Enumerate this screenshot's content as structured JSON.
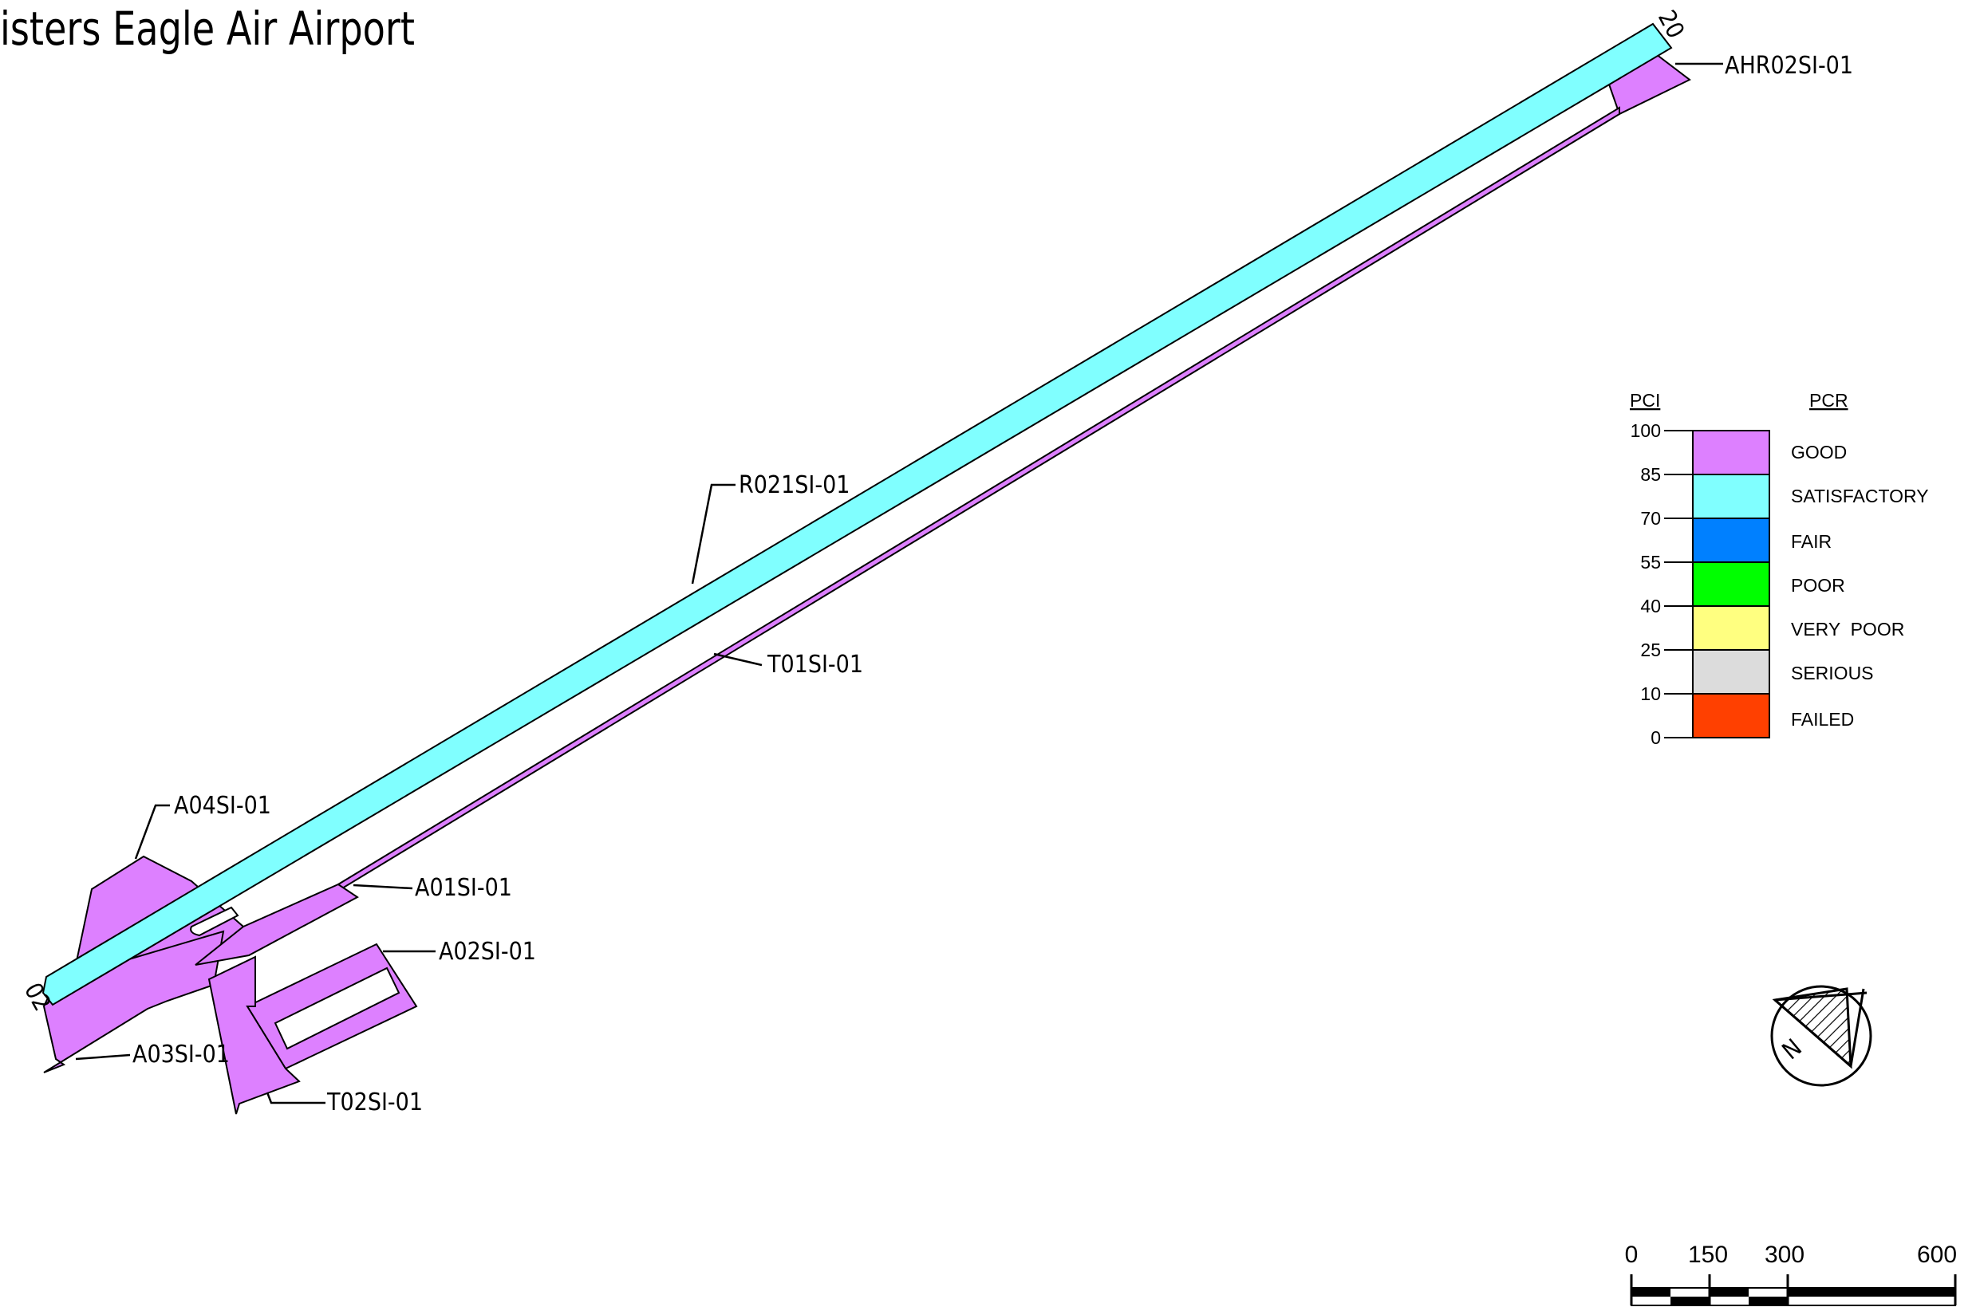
{
  "title": "isters Eagle Air Airport",
  "colors": {
    "good": "#dd80ff",
    "satisfactory": "#80ffff",
    "fair": "#0080ff",
    "poor": "#00ff00",
    "very_poor": "#ffff80",
    "serious": "#dcdcdc",
    "failed": "#ff4000"
  },
  "runway_ends": {
    "southwest": "02",
    "northeast": "20"
  },
  "sections": {
    "runway": "R021SI-01",
    "taxiway_parallel": "T01SI-01",
    "taxiway_connector": "T02SI-01",
    "apron_1": "A01SI-01",
    "apron_2": "A02SI-01",
    "apron_3": "A03SI-01",
    "apron_4": "A04SI-01",
    "helipad": "AHR02SI-01"
  },
  "legend": {
    "pci_header": "PCI",
    "pcr_header": "PCR",
    "ticks": [
      "100",
      "85",
      "70",
      "55",
      "40",
      "25",
      "10",
      "0"
    ],
    "rows": [
      "GOOD",
      "SATISFACTORY",
      "FAIR",
      "POOR",
      "VERY  POOR",
      "SERIOUS",
      "FAILED"
    ]
  },
  "north_arrow": {
    "letter": "N",
    "icon": "north-arrow-icon"
  },
  "scale_bar": {
    "labels": [
      "0",
      "150",
      "300",
      "600"
    ]
  }
}
